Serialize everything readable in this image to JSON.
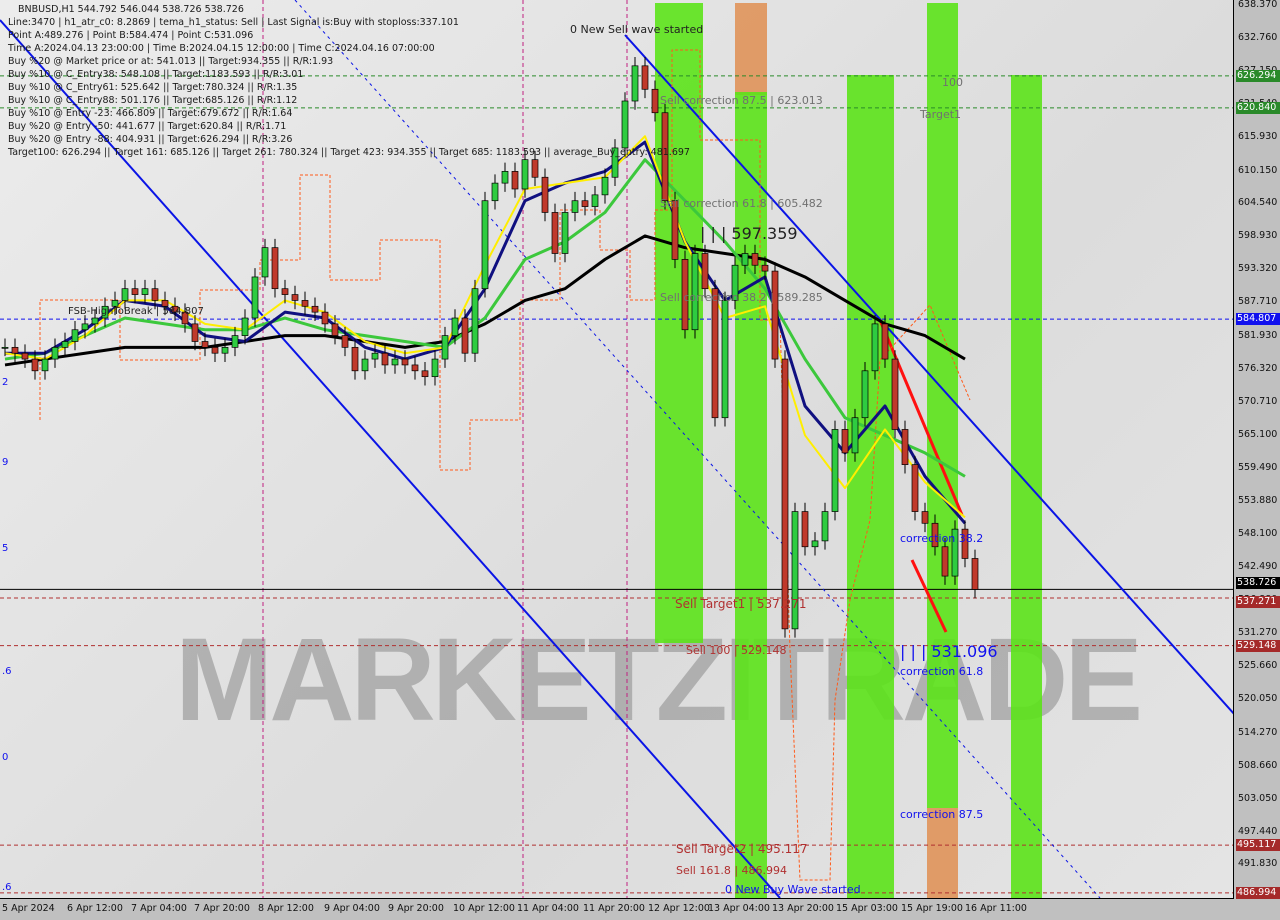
{
  "window": {
    "symbol_line": "BNBUSD,H1  544.792 546.044 538.726 538.726"
  },
  "info_lines": [
    "Line:3470 | h1_atr_c0: 8.2869 | tema_h1_status: Sell | Last Signal is:Buy with stoploss:337.101",
    "Point A:489.276 | Point B:584.474 | Point C:531.096",
    "Time A:2024.04.13 23:00:00 | Time B:2024.04.15 12:00:00 | Time C:2024.04.16 07:00:00",
    "Buy %20 @ Market price or at: 541.013 || Target:934.355 || R/R:1.93",
    "Buy %10 @ C_Entry38: 548.108 || Target:1183.593 || R/R:3.01",
    "Buy %10 @ C_Entry61: 525.642 || Target:780.324 || R/R:1.35",
    "Buy %10 @ C_Entry88: 501.176 || Target:685.126 || R/R:1.12",
    "Buy %10 @ Entry -23: 466.809 || Target:679.672 || R/R:1.64",
    "Buy %20 @ Entry -50: 441.677 || Target:620.84 || R/R:1.71",
    "Buy %20 @ Entry -88: 404.931 || Target:626.294 || R/R:3.26",
    "Target100: 626.294 || Target 161: 685.126 || Target 261: 780.324 || Target 423: 934.355 || Target 685: 1183.593 || average_Buy_entry: 481.697"
  ],
  "annotations": {
    "new_sell_wave": "0 New Sell wave started",
    "sell_corr_875": "Sell correction 87.5 | 623.013",
    "sell_corr_618": "Sell correction 61.8 | 605.482",
    "sell_corr_382": "Sell correction 38.2 | 589.285",
    "level_597": "| | | 597.359",
    "target1": "Target1",
    "hundred": "100",
    "fsb": "FSB-HighToBreak | 584.807",
    "sell_target1": "Sell Target1 | 537.271",
    "sell_100": "Sell 100 | 529.148",
    "level_531": "| | | 531.096",
    "corr_382": "correction 38.2",
    "corr_618": "correction 61.8",
    "corr_875": "correction 87.5",
    "sell_target2": "Sell Target2 | 495.117",
    "new_buy_wave": "0 New Buy Wave started",
    "sell_1618": "Sell 161.8 | 486.994"
  },
  "watermark": "MARKETZITRADE",
  "left_edge_labels": [
    "2",
    "9",
    "5",
    ".6",
    "0",
    ".6"
  ],
  "colors": {
    "bull": "#2ecc40",
    "bear": "#c0392b",
    "band_green": "#5ce31a",
    "band_orange": "#e0945a",
    "ma_black": "#000000",
    "ma_green": "#3cc83c",
    "ma_navy": "#101080",
    "ma_yellow": "#ffee00",
    "trend_blue": "#0a14e6"
  },
  "chart_data": {
    "type": "candlestick",
    "symbol": "BNBUSD",
    "timeframe": "H1",
    "ylim": [
      486.22,
      638.37
    ],
    "y_ticks": [
      "638.370",
      "632.760",
      "627.150",
      "621.540",
      "615.930",
      "610.150",
      "604.540",
      "598.930",
      "593.320",
      "587.710",
      "581.930",
      "576.320",
      "570.710",
      "565.100",
      "559.490",
      "553.880",
      "548.100",
      "542.490",
      "536.880",
      "531.270",
      "525.660",
      "520.050",
      "514.270",
      "508.660",
      "503.050",
      "497.440",
      "491.830",
      "486.220"
    ],
    "x_ticks": [
      "5 Apr 2024",
      "6 Apr 12:00",
      "7 Apr 04:00",
      "7 Apr 20:00",
      "8 Apr 12:00",
      "9 Apr 04:00",
      "9 Apr 20:00",
      "10 Apr 12:00",
      "11 Apr 04:00",
      "11 Apr 20:00",
      "12 Apr 12:00",
      "13 Apr 04:00",
      "13 Apr 20:00",
      "15 Apr 03:00",
      "15 Apr 19:00",
      "16 Apr 11:00"
    ],
    "closes_approx": [
      580,
      579,
      578,
      576,
      578,
      580,
      581,
      583,
      584,
      585,
      587,
      588,
      590,
      589,
      590,
      588,
      587,
      586,
      584,
      581,
      580,
      579,
      580,
      582,
      585,
      592,
      597,
      590,
      589,
      588,
      587,
      586,
      584,
      582,
      580,
      576,
      578,
      579,
      577,
      578,
      577,
      576,
      575,
      578,
      582,
      585,
      579,
      590,
      605,
      608,
      610,
      607,
      612,
      609,
      603,
      596,
      603,
      605,
      604,
      606,
      609,
      614,
      622,
      628,
      624,
      620,
      605,
      595,
      583,
      596,
      590,
      568,
      588,
      594,
      596,
      594,
      593,
      578,
      532,
      552,
      546,
      547,
      552,
      566,
      562,
      568,
      576,
      584,
      578,
      566,
      560,
      552,
      550,
      546,
      541,
      549,
      544,
      538.726
    ],
    "indicators": [
      {
        "color": "#000000",
        "values": [
          577,
          578,
          579,
          580,
          580,
          580,
          581,
          582,
          582,
          581,
          580,
          581,
          584,
          588,
          590,
          595,
          599,
          597,
          596,
          595,
          592,
          588,
          584,
          582,
          578
        ]
      },
      {
        "color": "#3cc83c",
        "values": [
          578,
          579,
          582,
          585,
          584,
          583,
          583,
          585,
          583,
          582,
          581,
          580,
          585,
          595,
          598,
          603,
          612,
          605,
          598,
          590,
          578,
          568,
          565,
          562,
          558
        ]
      },
      {
        "color": "#101080",
        "values": [
          579,
          579,
          583,
          588,
          587,
          582,
          581,
          586,
          585,
          580,
          578,
          580,
          590,
          605,
          608,
          610,
          615,
          598,
          588,
          592,
          570,
          562,
          570,
          558,
          550
        ]
      },
      {
        "color": "#ffee00",
        "values": [
          579,
          578,
          582,
          588,
          588,
          584,
          583,
          588,
          586,
          581,
          579,
          580,
          594,
          607,
          608,
          609,
          616,
          598,
          585,
          587,
          565,
          556,
          566,
          557,
          551
        ]
      }
    ],
    "horizontal_levels": [
      {
        "price": 626.294,
        "label": "626.294",
        "color": "#2a8a2a",
        "style": "dashed"
      },
      {
        "price": 620.84,
        "label": "620.840",
        "color": "#2a8a2a",
        "style": "dashed"
      },
      {
        "price": 584.807,
        "label": "584.807",
        "color": "#1010ee",
        "style": "dashed"
      },
      {
        "price": 538.726,
        "label": "538.726",
        "color": "#000000",
        "style": "solid"
      },
      {
        "price": 537.271,
        "label": "537.271",
        "color": "#b03030",
        "style": "dashed"
      },
      {
        "price": 529.148,
        "label": "529.148",
        "color": "#b03030",
        "style": "dashed"
      },
      {
        "price": 495.117,
        "label": "495.117",
        "color": "#b03030",
        "style": "dashed"
      },
      {
        "price": 486.994,
        "label": "486.994",
        "color": "#b03030",
        "style": "dashed"
      }
    ],
    "last_price": 538.726
  }
}
